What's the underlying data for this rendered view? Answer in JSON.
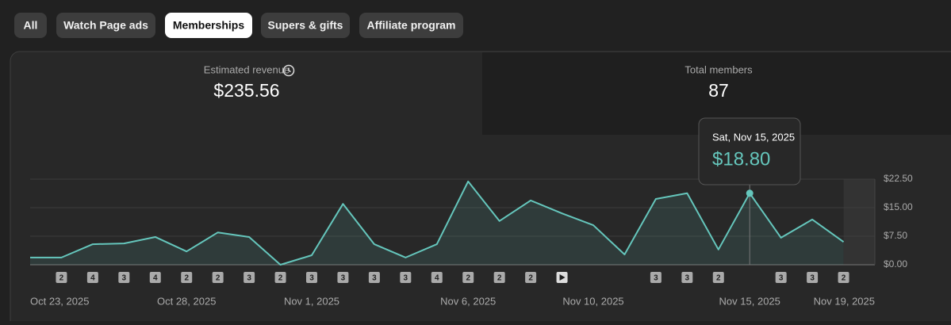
{
  "tabs": [
    "All",
    "Watch Page ads",
    "Memberships",
    "Supers & gifts",
    "Affiliate program"
  ],
  "selected_tab": 2,
  "cards": [
    {
      "title": "Estimated revenue",
      "value": "$235.56"
    },
    {
      "title": "Total members",
      "value": "87"
    }
  ],
  "tooltip": {
    "date": "Sat, Nov 15, 2025",
    "value": "$18.80",
    "index": 23
  },
  "chart_data": {
    "type": "area",
    "categories": [
      "Oct 23, 2025",
      null,
      null,
      null,
      null,
      "Oct 28, 2025",
      null,
      null,
      null,
      "Nov 1, 2025",
      null,
      null,
      null,
      null,
      "Nov 6, 2025",
      null,
      null,
      null,
      "Nov 10, 2025",
      null,
      null,
      null,
      null,
      "Nov 15, 2025",
      null,
      null,
      null,
      "Nov 19, 2025"
    ],
    "values": [
      1.9,
      1.9,
      5.4,
      5.6,
      7.3,
      3.5,
      8.5,
      7.3,
      0.0,
      2.5,
      16.0,
      5.4,
      1.9,
      5.4,
      21.9,
      11.5,
      16.9,
      13.5,
      10.4,
      2.7,
      17.3,
      18.8,
      4.0,
      18.8,
      7.1,
      11.9,
      6.0,
      null
    ],
    "value_labels": [
      null,
      null,
      null,
      null,
      null,
      null,
      null,
      null,
      null,
      null,
      null,
      null,
      null,
      null,
      null,
      null,
      null,
      null,
      null,
      null,
      null,
      null,
      null,
      "$18.80",
      null,
      null,
      null,
      null
    ],
    "color": "#65c6bc",
    "badges": [
      null,
      2,
      4,
      3,
      4,
      2,
      2,
      3,
      2,
      3,
      3,
      3,
      3,
      4,
      2,
      2,
      2,
      null,
      null,
      null,
      3,
      3,
      2,
      null,
      3,
      3,
      2,
      null
    ],
    "ylim": [
      0,
      22.5
    ],
    "yticks": [
      {
        "value": 0,
        "label": "$0.00"
      },
      {
        "value": 7.5,
        "label": "$7.50"
      },
      {
        "value": 15,
        "label": "$15.00"
      },
      {
        "value": 22.5,
        "label": "$22.50"
      }
    ],
    "grid": true
  }
}
